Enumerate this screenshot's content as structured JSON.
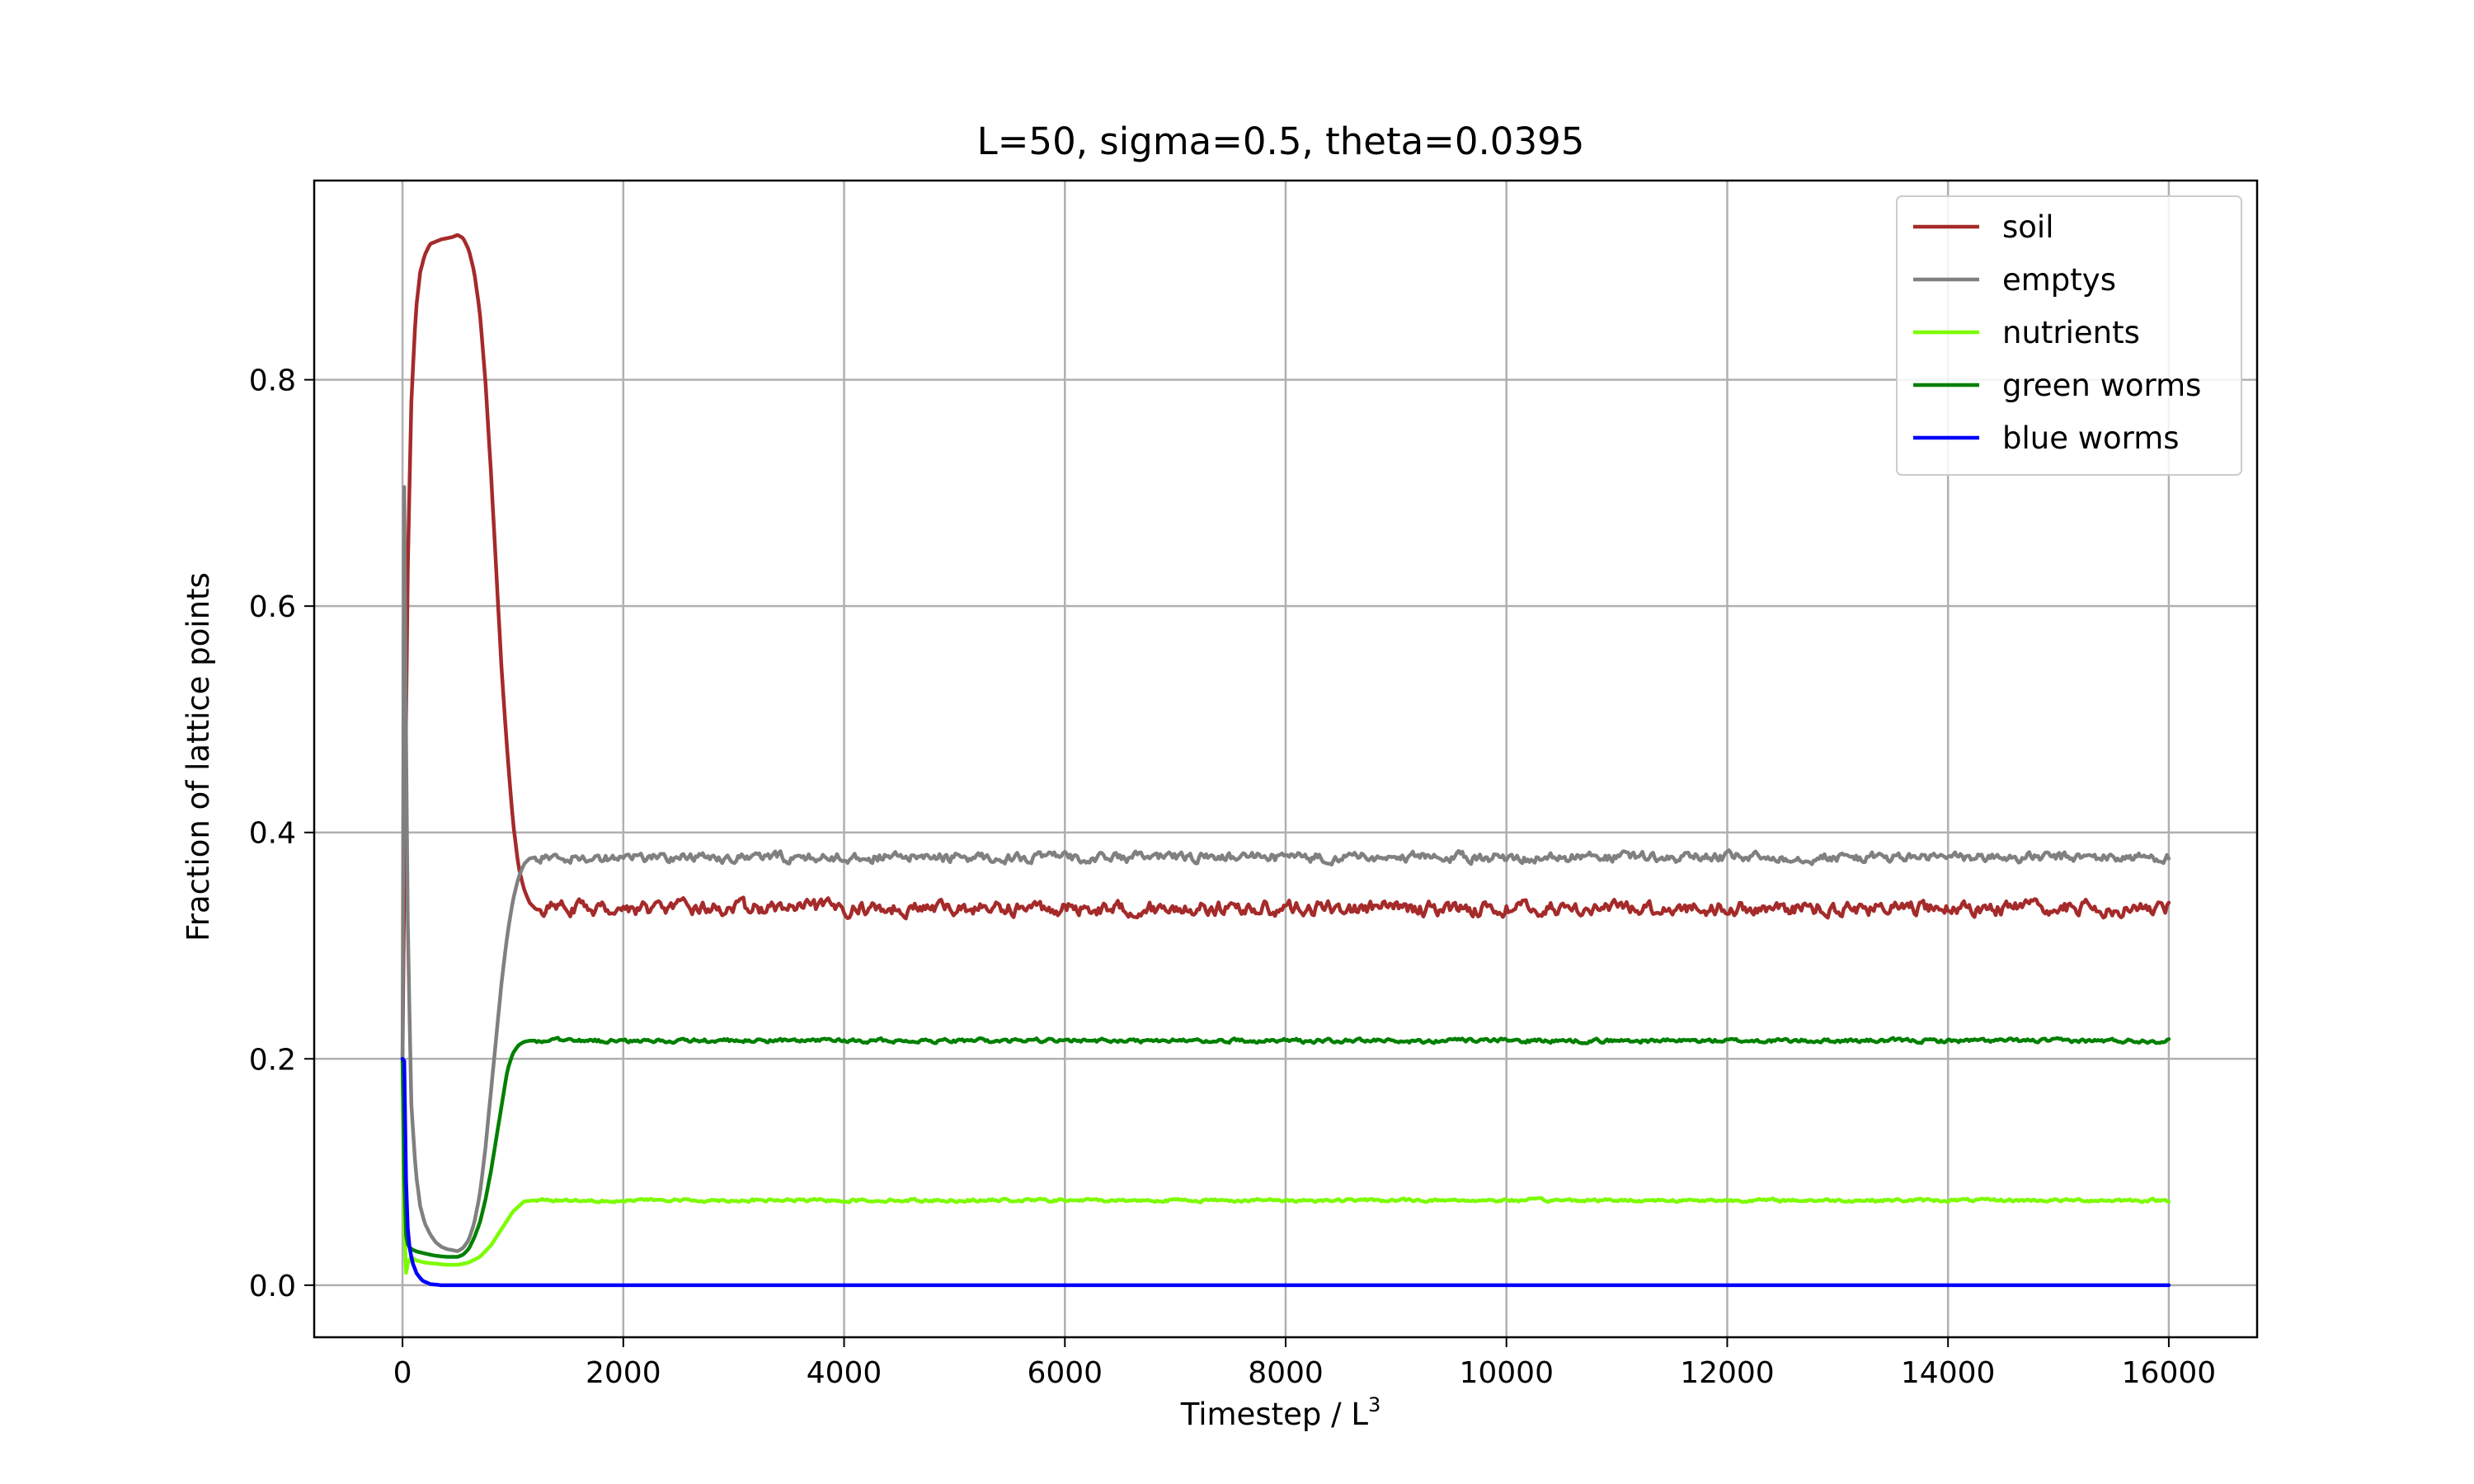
{
  "chart_data": {
    "type": "line",
    "title": "L=50, sigma=0.5, theta=0.0395",
    "xlabel": "Timestep / L",
    "xlabel_superscript": "3",
    "ylabel": "Fraction of lattice points",
    "xlim": [
      -800,
      16800
    ],
    "ylim": [
      -0.046,
      0.976
    ],
    "xticks": [
      0,
      2000,
      4000,
      6000,
      8000,
      10000,
      12000,
      14000,
      16000
    ],
    "yticks": [
      0.0,
      0.2,
      0.4,
      0.6,
      0.8
    ],
    "xtick_labels": [
      "0",
      "2000",
      "4000",
      "6000",
      "8000",
      "10000",
      "12000",
      "14000",
      "16000"
    ],
    "ytick_labels": [
      "0.0",
      "0.2",
      "0.4",
      "0.6",
      "0.8"
    ],
    "grid": true,
    "legend_position": "top-right",
    "series": [
      {
        "name": "soil",
        "color": "#a52a2a",
        "x": [
          0,
          20,
          50,
          80,
          120,
          160,
          200,
          250,
          300,
          350,
          400,
          450,
          500,
          550,
          600,
          650,
          700,
          750,
          800,
          850,
          900,
          950,
          1000,
          1050,
          1100,
          1150,
          1200,
          16000
        ],
        "y": [
          0.2,
          0.4,
          0.65,
          0.78,
          0.86,
          0.895,
          0.91,
          0.92,
          0.922,
          0.924,
          0.925,
          0.926,
          0.928,
          0.925,
          0.915,
          0.895,
          0.86,
          0.8,
          0.72,
          0.63,
          0.54,
          0.47,
          0.41,
          0.37,
          0.35,
          0.338,
          0.333,
          0.333
        ],
        "noise": 0.007
      },
      {
        "name": "emptys",
        "color": "#808080",
        "x": [
          0,
          15,
          30,
          50,
          80,
          120,
          160,
          200,
          250,
          300,
          350,
          400,
          450,
          500,
          550,
          600,
          650,
          700,
          750,
          800,
          850,
          900,
          950,
          1000,
          1050,
          1100,
          1150,
          1200,
          16000
        ],
        "y": [
          0.2,
          0.72,
          0.5,
          0.3,
          0.16,
          0.1,
          0.07,
          0.055,
          0.045,
          0.038,
          0.034,
          0.032,
          0.031,
          0.03,
          0.033,
          0.04,
          0.055,
          0.08,
          0.12,
          0.17,
          0.22,
          0.27,
          0.31,
          0.34,
          0.36,
          0.372,
          0.377,
          0.378,
          0.378
        ],
        "noise": 0.005
      },
      {
        "name": "nutrients",
        "color": "#7cfc00",
        "x": [
          0,
          15,
          30,
          50,
          80,
          120,
          200,
          300,
          400,
          500,
          600,
          700,
          800,
          900,
          1000,
          1100,
          1200,
          16000
        ],
        "y": [
          0.2,
          0.06,
          0.01,
          0.02,
          0.025,
          0.022,
          0.02,
          0.019,
          0.018,
          0.018,
          0.02,
          0.025,
          0.035,
          0.05,
          0.065,
          0.074,
          0.075,
          0.075
        ],
        "noise": 0.0015
      },
      {
        "name": "green worms",
        "color": "#008000",
        "x": [
          0,
          15,
          30,
          50,
          80,
          120,
          200,
          300,
          400,
          500,
          550,
          600,
          650,
          700,
          750,
          800,
          850,
          900,
          950,
          1000,
          1050,
          1100,
          1150,
          1200,
          16000
        ],
        "y": [
          0.2,
          0.1,
          0.045,
          0.035,
          0.032,
          0.03,
          0.028,
          0.026,
          0.025,
          0.025,
          0.027,
          0.032,
          0.042,
          0.055,
          0.075,
          0.1,
          0.13,
          0.16,
          0.19,
          0.205,
          0.212,
          0.215,
          0.216,
          0.216,
          0.216
        ],
        "noise": 0.002
      },
      {
        "name": "blue worms",
        "color": "#0000ff",
        "x": [
          0,
          10,
          25,
          40,
          60,
          90,
          130,
          180,
          250,
          350,
          16000
        ],
        "y": [
          0.2,
          0.25,
          0.12,
          0.06,
          0.035,
          0.02,
          0.01,
          0.004,
          0.001,
          0.0,
          0.0
        ],
        "noise": 0.0
      }
    ]
  }
}
